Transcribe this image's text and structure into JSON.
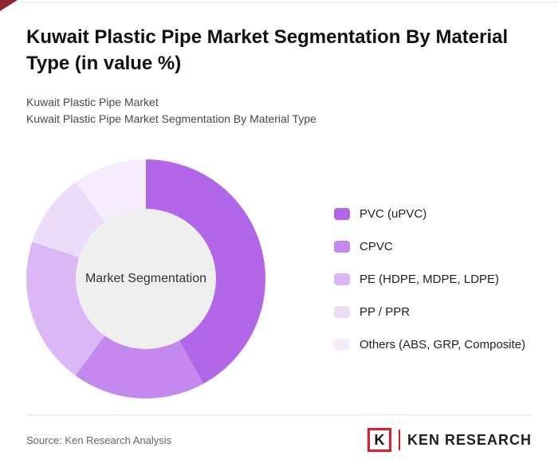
{
  "header": {
    "title": "Kuwait Plastic Pipe Market Segmentation By Material Type (in value %)",
    "subtitle_line1": "Kuwait Plastic Pipe Market",
    "subtitle_line2": "Kuwait Plastic Pipe Market Segmentation By Material Type"
  },
  "chart_data": {
    "type": "pie",
    "variant": "donut",
    "title": "Kuwait Plastic Pipe Market Segmentation By Material Type (in value %)",
    "center_label": "Market Segmentation",
    "legend_position": "right",
    "start_angle_deg": 0,
    "direction": "clockwise",
    "units": "value %",
    "hole_fill": "#efefef",
    "segments": [
      {
        "label": "PVC (uPVC)",
        "value": 42,
        "color": "#b267e8"
      },
      {
        "label": "CPVC",
        "value": 18,
        "color": "#c489ef"
      },
      {
        "label": "PE (HDPE, MDPE, LDPE)",
        "value": 20,
        "color": "#dbb8f5"
      },
      {
        "label": "PP / PPR",
        "value": 10,
        "color": "#ecdcfa"
      },
      {
        "label": "Others (ABS, GRP, Composite)",
        "value": 10,
        "color": "#f5ecfd"
      }
    ]
  },
  "footer": {
    "source": "Source: Ken Research Analysis",
    "logo": {
      "letter": "K",
      "text": "KEN RESEARCH",
      "accent_color": "#e8192c"
    }
  },
  "decoration": {
    "corner_accent_color": "#8f2433"
  }
}
